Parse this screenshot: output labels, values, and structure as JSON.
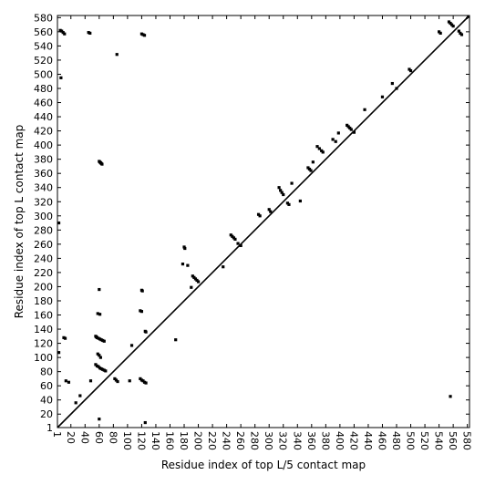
{
  "chart_data": {
    "type": "scatter",
    "title": "",
    "xlabel": "Residue index of top L/5 contact map",
    "ylabel": "Residue index of top L contact map",
    "xlim": [
      1,
      583
    ],
    "ylim": [
      1,
      583
    ],
    "x_ticks": [
      "1",
      "20",
      "40",
      "60",
      "80",
      "100",
      "120",
      "140",
      "160",
      "180",
      "200",
      "220",
      "240",
      "260",
      "280",
      "300",
      "320",
      "340",
      "360",
      "380",
      "400",
      "420",
      "440",
      "460",
      "480",
      "500",
      "520",
      "540",
      "560",
      "580"
    ],
    "y_ticks": [
      "1",
      "20",
      "40",
      "60",
      "80",
      "100",
      "120",
      "140",
      "160",
      "180",
      "200",
      "220",
      "240",
      "260",
      "280",
      "300",
      "320",
      "340",
      "360",
      "380",
      "400",
      "420",
      "440",
      "460",
      "480",
      "500",
      "520",
      "540",
      "560",
      "580"
    ],
    "grid": false,
    "legend": "none",
    "diagonal_line": true,
    "colors": {
      "points": "#000000",
      "diagonal": "#000000"
    },
    "series": [
      {
        "points": [
          [
            5,
            562
          ],
          [
            7,
            561
          ],
          [
            9,
            559
          ],
          [
            11,
            557
          ],
          [
            6,
            495
          ],
          [
            45,
            559
          ],
          [
            47,
            558
          ],
          [
            120,
            557
          ],
          [
            122,
            556
          ],
          [
            124,
            555
          ],
          [
            85,
            528
          ],
          [
            3,
            290
          ],
          [
            60,
            377
          ],
          [
            61,
            376
          ],
          [
            62,
            375
          ],
          [
            63,
            374
          ],
          [
            64,
            373
          ],
          [
            55,
            130
          ],
          [
            57,
            128
          ],
          [
            59,
            127
          ],
          [
            61,
            126
          ],
          [
            63,
            125
          ],
          [
            65,
            124
          ],
          [
            67,
            123
          ],
          [
            56,
            129
          ],
          [
            55,
            90
          ],
          [
            57,
            88
          ],
          [
            59,
            87
          ],
          [
            61,
            85
          ],
          [
            63,
            84
          ],
          [
            65,
            83
          ],
          [
            67,
            82
          ],
          [
            69,
            81
          ],
          [
            58,
            105
          ],
          [
            60,
            103
          ],
          [
            62,
            100
          ],
          [
            58,
            162
          ],
          [
            61,
            161
          ],
          [
            60,
            196
          ],
          [
            10,
            128
          ],
          [
            12,
            127
          ],
          [
            3,
            107
          ],
          [
            13,
            67
          ],
          [
            17,
            65
          ],
          [
            33,
            46
          ],
          [
            48,
            67
          ],
          [
            27,
            36
          ],
          [
            60,
            13
          ],
          [
            82,
            70
          ],
          [
            84,
            68
          ],
          [
            86,
            66
          ],
          [
            118,
            70
          ],
          [
            120,
            68
          ],
          [
            122,
            67
          ],
          [
            124,
            65
          ],
          [
            126,
            64
          ],
          [
            103,
            67
          ],
          [
            120,
            195
          ],
          [
            121,
            194
          ],
          [
            118,
            166
          ],
          [
            120,
            165
          ],
          [
            125,
            137
          ],
          [
            126,
            136
          ],
          [
            125,
            8
          ],
          [
            106,
            117
          ],
          [
            168,
            125
          ],
          [
            180,
            256
          ],
          [
            181,
            254
          ],
          [
            192,
            215
          ],
          [
            194,
            213
          ],
          [
            196,
            211
          ],
          [
            198,
            209
          ],
          [
            200,
            207
          ],
          [
            190,
            199
          ],
          [
            178,
            232
          ],
          [
            185,
            230
          ],
          [
            235,
            228
          ],
          [
            246,
            273
          ],
          [
            248,
            271
          ],
          [
            250,
            269
          ],
          [
            252,
            267
          ],
          [
            256,
            261
          ],
          [
            260,
            258
          ],
          [
            285,
            302
          ],
          [
            287,
            300
          ],
          [
            300,
            309
          ],
          [
            302,
            306
          ],
          [
            314,
            340
          ],
          [
            316,
            336
          ],
          [
            318,
            333
          ],
          [
            320,
            330
          ],
          [
            326,
            318
          ],
          [
            328,
            316
          ],
          [
            332,
            346
          ],
          [
            344,
            321
          ],
          [
            355,
            368
          ],
          [
            357,
            366
          ],
          [
            359,
            364
          ],
          [
            362,
            376
          ],
          [
            368,
            398
          ],
          [
            371,
            395
          ],
          [
            374,
            392
          ],
          [
            376,
            390
          ],
          [
            390,
            408
          ],
          [
            394,
            405
          ],
          [
            398,
            417
          ],
          [
            410,
            428
          ],
          [
            412,
            426
          ],
          [
            414,
            424
          ],
          [
            416,
            422
          ],
          [
            420,
            418
          ],
          [
            435,
            450
          ],
          [
            460,
            468
          ],
          [
            474,
            487
          ],
          [
            480,
            480
          ],
          [
            498,
            507
          ],
          [
            500,
            505
          ],
          [
            540,
            560
          ],
          [
            542,
            558
          ],
          [
            554,
            574
          ],
          [
            556,
            572
          ],
          [
            558,
            570
          ],
          [
            560,
            568
          ],
          [
            568,
            561
          ],
          [
            570,
            558
          ],
          [
            572,
            556
          ],
          [
            556,
            45
          ]
        ]
      }
    ]
  }
}
